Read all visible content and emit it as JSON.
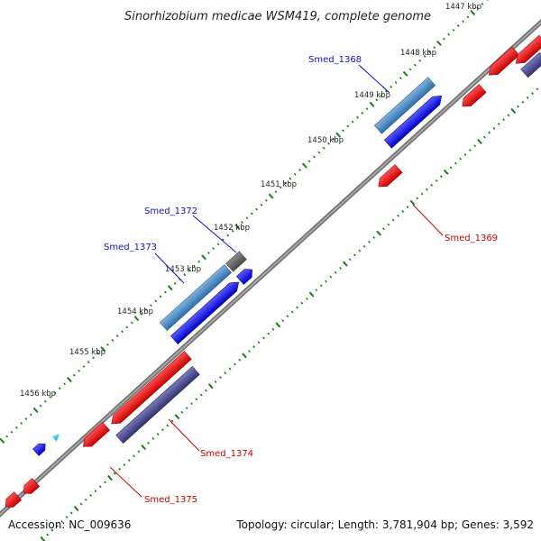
{
  "title": "Sinorhizobium medicae WSM419, complete genome",
  "footer": {
    "accession": "Accession: NC_009636",
    "topology": "Topology: circular; Length: 3,781,904 bp; Genes: 3,592"
  },
  "ticks": [
    "1447 kbp",
    "1448 kbp",
    "1449 kbp",
    "1450 kbp",
    "1451 kbp",
    "1452 kbp",
    "1453 kbp",
    "1454 kbp",
    "1455 kbp",
    "1456 kbp"
  ],
  "gene_labels": {
    "smed_1368": "Smed_1368",
    "smed_1372": "Smed_1372",
    "smed_1373": "Smed_1373",
    "smed_1369": "Smed_1369",
    "smed_1374": "Smed_1374",
    "smed_1375": "Smed_1375"
  },
  "colors": {
    "forward_gene": "#0a0adc",
    "forward_gene_alt": "#3f7fbf",
    "reverse_gene": "#e00000",
    "reverse_gene_alt": "#4a4a8c",
    "backbone": "#808080",
    "tick_marks": "#1a7a1a",
    "label_blue": "#1010c8",
    "label_red": "#c80000"
  }
}
